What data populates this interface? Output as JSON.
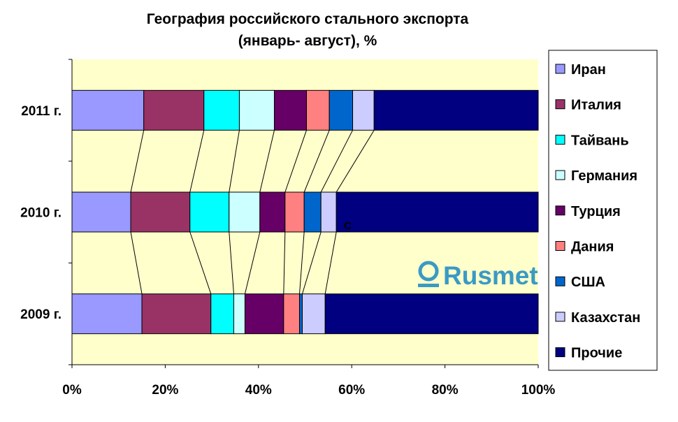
{
  "chart_data": {
    "type": "bar",
    "stacked": "100%",
    "orientation": "horizontal",
    "title": [
      "География российского стального экспорта",
      "(январь- август), %"
    ],
    "categories": [
      "2011 г.",
      "2010 г.",
      "2009 г."
    ],
    "series": [
      {
        "name": "Иран",
        "color": "#9999FF",
        "values": [
          15.4,
          12.6,
          15.0
        ]
      },
      {
        "name": "Италия",
        "color": "#993366",
        "values": [
          12.9,
          12.7,
          14.8
        ]
      },
      {
        "name": "Тайвань",
        "color": "#00FFFF",
        "values": [
          7.6,
          8.4,
          4.9
        ]
      },
      {
        "name": "Германия",
        "color": "#CCFFFF",
        "values": [
          7.5,
          6.6,
          2.4
        ]
      },
      {
        "name": "Турция",
        "color": "#660066",
        "values": [
          6.9,
          5.4,
          8.3
        ]
      },
      {
        "name": "Дания",
        "color": "#FF8080",
        "values": [
          4.9,
          4.1,
          3.4
        ]
      },
      {
        "name": "США",
        "color": "#0066CC",
        "values": [
          5.0,
          3.6,
          0.6
        ]
      },
      {
        "name": "Казахстан",
        "color": "#CCCCFF",
        "values": [
          4.6,
          3.3,
          4.9
        ]
      },
      {
        "name": "Прочие",
        "color": "#000080",
        "values": [
          35.2,
          43.3,
          45.7
        ]
      }
    ],
    "xlim": [
      0,
      100
    ],
    "xticks": [
      "0%",
      "20%",
      "40%",
      "60%",
      "80%",
      "100%"
    ],
    "series_lines": true,
    "legend_position": "right",
    "annotation": "C",
    "plot_background": "#FFFFCC"
  },
  "logo": "Rusmet"
}
